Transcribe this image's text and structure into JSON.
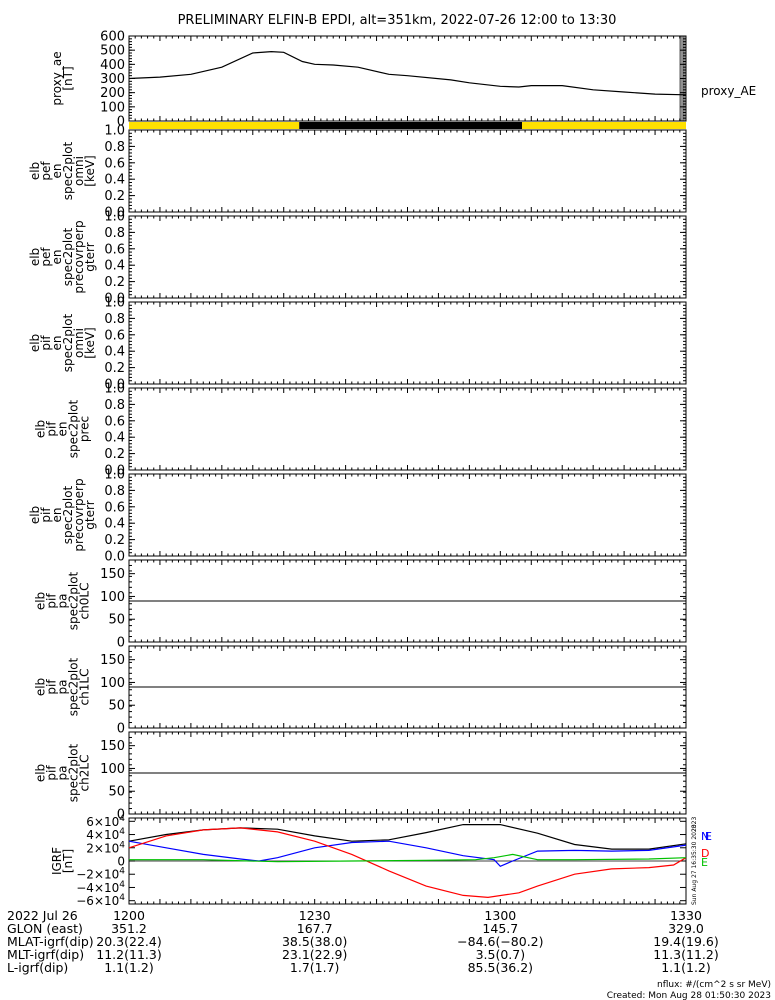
{
  "title": "PRELIMINARY ELFIN-B EPDI, alt=351km, 2022-07-26 12:00 to 13:30",
  "colors": {
    "ae_line": "#000000",
    "bar_yellow": "#ffe000",
    "bar_black": "#000000",
    "grf_x": "#000000",
    "grf_y": "#0000ff",
    "grf_z": "#ff0000",
    "grf_g": "#00c000"
  },
  "chart_data": [
    {
      "type": "line",
      "name": "proxy_ae",
      "ylabel": [
        "proxy_ae",
        "[nT]"
      ],
      "legend": "proxy_AE",
      "ylim": [
        0,
        600
      ],
      "yticks": [
        "0",
        "100",
        "200",
        "300",
        "400",
        "500",
        "600"
      ],
      "x_minutes": [
        0,
        5,
        10,
        15,
        20,
        23,
        25,
        28,
        30,
        33,
        37,
        42,
        45,
        52,
        55,
        60,
        63,
        65,
        70,
        75,
        80,
        85,
        90
      ],
      "y": [
        300,
        310,
        330,
        380,
        480,
        490,
        485,
        420,
        400,
        395,
        380,
        330,
        320,
        290,
        270,
        245,
        240,
        250,
        250,
        220,
        205,
        190,
        185
      ]
    },
    {
      "type": "bar",
      "name": "orbit_flag",
      "segments": [
        {
          "start": 0,
          "end": 27.5,
          "state": "yellow"
        },
        {
          "start": 27.5,
          "end": 63.5,
          "state": "black"
        },
        {
          "start": 63.5,
          "end": 90,
          "state": "yellow"
        }
      ]
    },
    {
      "type": "line",
      "name": "pef_omni",
      "ylabel": [
        "elb",
        "pef",
        "en",
        "spec2plot",
        "omni",
        "[keV]"
      ],
      "ylim": [
        0,
        1
      ],
      "yticks": [
        "0.0",
        "0.2",
        "0.4",
        "0.6",
        "0.8",
        "1.0"
      ],
      "series": []
    },
    {
      "type": "line",
      "name": "pef_precovrperp",
      "ylabel": [
        "elb",
        "pef",
        "en",
        "spec2plot",
        "precovrperp",
        "gterr"
      ],
      "ylim": [
        0,
        1
      ],
      "yticks": [
        "0.0",
        "0.2",
        "0.4",
        "0.6",
        "0.8",
        "1.0"
      ],
      "series": []
    },
    {
      "type": "line",
      "name": "pif_omni",
      "ylabel": [
        "elb",
        "pif",
        "en",
        "spec2plot",
        "omni",
        "[keV]"
      ],
      "ylim": [
        0,
        1
      ],
      "yticks": [
        "0.0",
        "0.2",
        "0.4",
        "0.6",
        "0.8",
        "1.0"
      ],
      "series": []
    },
    {
      "type": "line",
      "name": "pif_prec",
      "ylabel": [
        "elb",
        "pif",
        "en",
        "spec2plot",
        "prec"
      ],
      "ylim": [
        0,
        1
      ],
      "yticks": [
        "0.0",
        "0.2",
        "0.4",
        "0.6",
        "0.8",
        "1.0"
      ],
      "series": []
    },
    {
      "type": "line",
      "name": "pif_precovrperp",
      "ylabel": [
        "elb",
        "pif",
        "en",
        "spec2plot",
        "precovrperp",
        "gterr"
      ],
      "ylim": [
        0,
        1
      ],
      "yticks": [
        "0.0",
        "0.2",
        "0.4",
        "0.6",
        "0.8",
        "1.0"
      ],
      "series": []
    },
    {
      "type": "line",
      "name": "pa_ch0",
      "ylabel": [
        "elb",
        "pif",
        "pa",
        "spec2plot",
        "ch0LC"
      ],
      "ylim": [
        0,
        180
      ],
      "yticks": [
        "0",
        "50",
        "100",
        "150"
      ],
      "hline": 90,
      "series": []
    },
    {
      "type": "line",
      "name": "pa_ch1",
      "ylabel": [
        "elb",
        "pif",
        "pa",
        "spec2plot",
        "ch1LC"
      ],
      "ylim": [
        0,
        180
      ],
      "yticks": [
        "0",
        "50",
        "100",
        "150"
      ],
      "hline": 90,
      "series": []
    },
    {
      "type": "line",
      "name": "pa_ch2",
      "ylabel": [
        "elb",
        "pif",
        "pa",
        "spec2plot",
        "ch2LC"
      ],
      "ylim": [
        0,
        180
      ],
      "yticks": [
        "0",
        "50",
        "100",
        "150"
      ],
      "hline": 90,
      "series": []
    },
    {
      "type": "line",
      "name": "grf",
      "ylabel": [
        "IGRF",
        "[nT]"
      ],
      "ylim": [
        -65000,
        65000
      ],
      "yticks": [
        {
          "v": 60000,
          "m": "6",
          "s": "4",
          "neg": false
        },
        {
          "v": 40000,
          "m": "4",
          "s": "4",
          "neg": false
        },
        {
          "v": 20000,
          "m": "2",
          "s": "4",
          "neg": false
        },
        {
          "v": 0,
          "m": "0",
          "s": "",
          "neg": false
        },
        {
          "v": -20000,
          "m": "2",
          "s": "4",
          "neg": true
        },
        {
          "v": -40000,
          "m": "4",
          "s": "4",
          "neg": true
        },
        {
          "v": -60000,
          "m": "6",
          "s": "4",
          "neg": true
        }
      ],
      "legend": [
        "N",
        "E",
        "D",
        "E"
      ],
      "series": [
        {
          "name": "X",
          "color": "#000000",
          "x": [
            0,
            6,
            12,
            18,
            24,
            30,
            36,
            42,
            48,
            54,
            60,
            66,
            72,
            78,
            84,
            90
          ],
          "y": [
            30000,
            40000,
            47000,
            50000,
            48000,
            38000,
            30000,
            32000,
            43000,
            55000,
            55000,
            42000,
            25000,
            18000,
            18000,
            26000
          ]
        },
        {
          "name": "Y",
          "color": "#0000ff",
          "x": [
            0,
            6,
            12,
            18,
            21,
            24,
            30,
            36,
            42,
            48,
            54,
            59,
            60,
            62,
            66,
            72,
            78,
            84,
            90
          ],
          "y": [
            30000,
            20000,
            10000,
            3000,
            0,
            5000,
            20000,
            28000,
            30000,
            20000,
            8000,
            2000,
            -8000,
            0,
            15000,
            16000,
            15000,
            16000,
            24000
          ]
        },
        {
          "name": "Z",
          "color": "#ff0000",
          "x": [
            0,
            6,
            12,
            18,
            24,
            30,
            36,
            42,
            48,
            54,
            58,
            63,
            66,
            72,
            78,
            84,
            88,
            90
          ],
          "y": [
            20000,
            38000,
            47000,
            50000,
            44000,
            30000,
            10000,
            -15000,
            -38000,
            -52000,
            -55000,
            -48000,
            -38000,
            -20000,
            -12000,
            -10000,
            -6000,
            5000
          ]
        },
        {
          "name": "G",
          "color": "#00c000",
          "x": [
            0,
            12,
            24,
            36,
            48,
            56,
            59,
            62,
            66,
            72,
            84,
            90
          ],
          "y": [
            2000,
            2000,
            -1000,
            0,
            1000,
            2000,
            5000,
            10000,
            2000,
            2000,
            3000,
            5000
          ]
        }
      ]
    }
  ],
  "xticks": [
    {
      "m": 0,
      "label": "1200"
    },
    {
      "m": 30,
      "label": "1230"
    },
    {
      "m": 60,
      "label": "1300"
    },
    {
      "m": 90,
      "label": "1330"
    }
  ],
  "ephem_rows": [
    {
      "label": "2022 Jul 26",
      "vals": [
        "",
        "",
        "",
        ""
      ]
    },
    {
      "label": "GLON (east)",
      "vals": [
        "351.2",
        "167.7",
        "145.7",
        "329.0"
      ]
    },
    {
      "label": "MLAT-igrf(dip)",
      "vals": [
        "20.3(22.4)",
        "38.5(38.0)",
        "−84.6(−80.2)",
        "19.4(19.6)"
      ]
    },
    {
      "label": "MLT-igrf(dip)",
      "vals": [
        "11.2(11.3)",
        "23.1(22.9)",
        "3.5(0.7)",
        "11.3(11.2)"
      ]
    },
    {
      "label": "L-igrf(dip)",
      "vals": [
        "1.1(1.2)",
        "1.7(1.7)",
        "85.5(36.2)",
        "1.1(1.2)"
      ]
    }
  ],
  "nflux_note": "nflux: #/(cm^2 s sr MeV)",
  "created": "Created: Mon Aug 28 01:50:30 2023",
  "stamp_bottom": "Sun Aug 27 16:35:30 2023",
  "stamp_top": "2023"
}
